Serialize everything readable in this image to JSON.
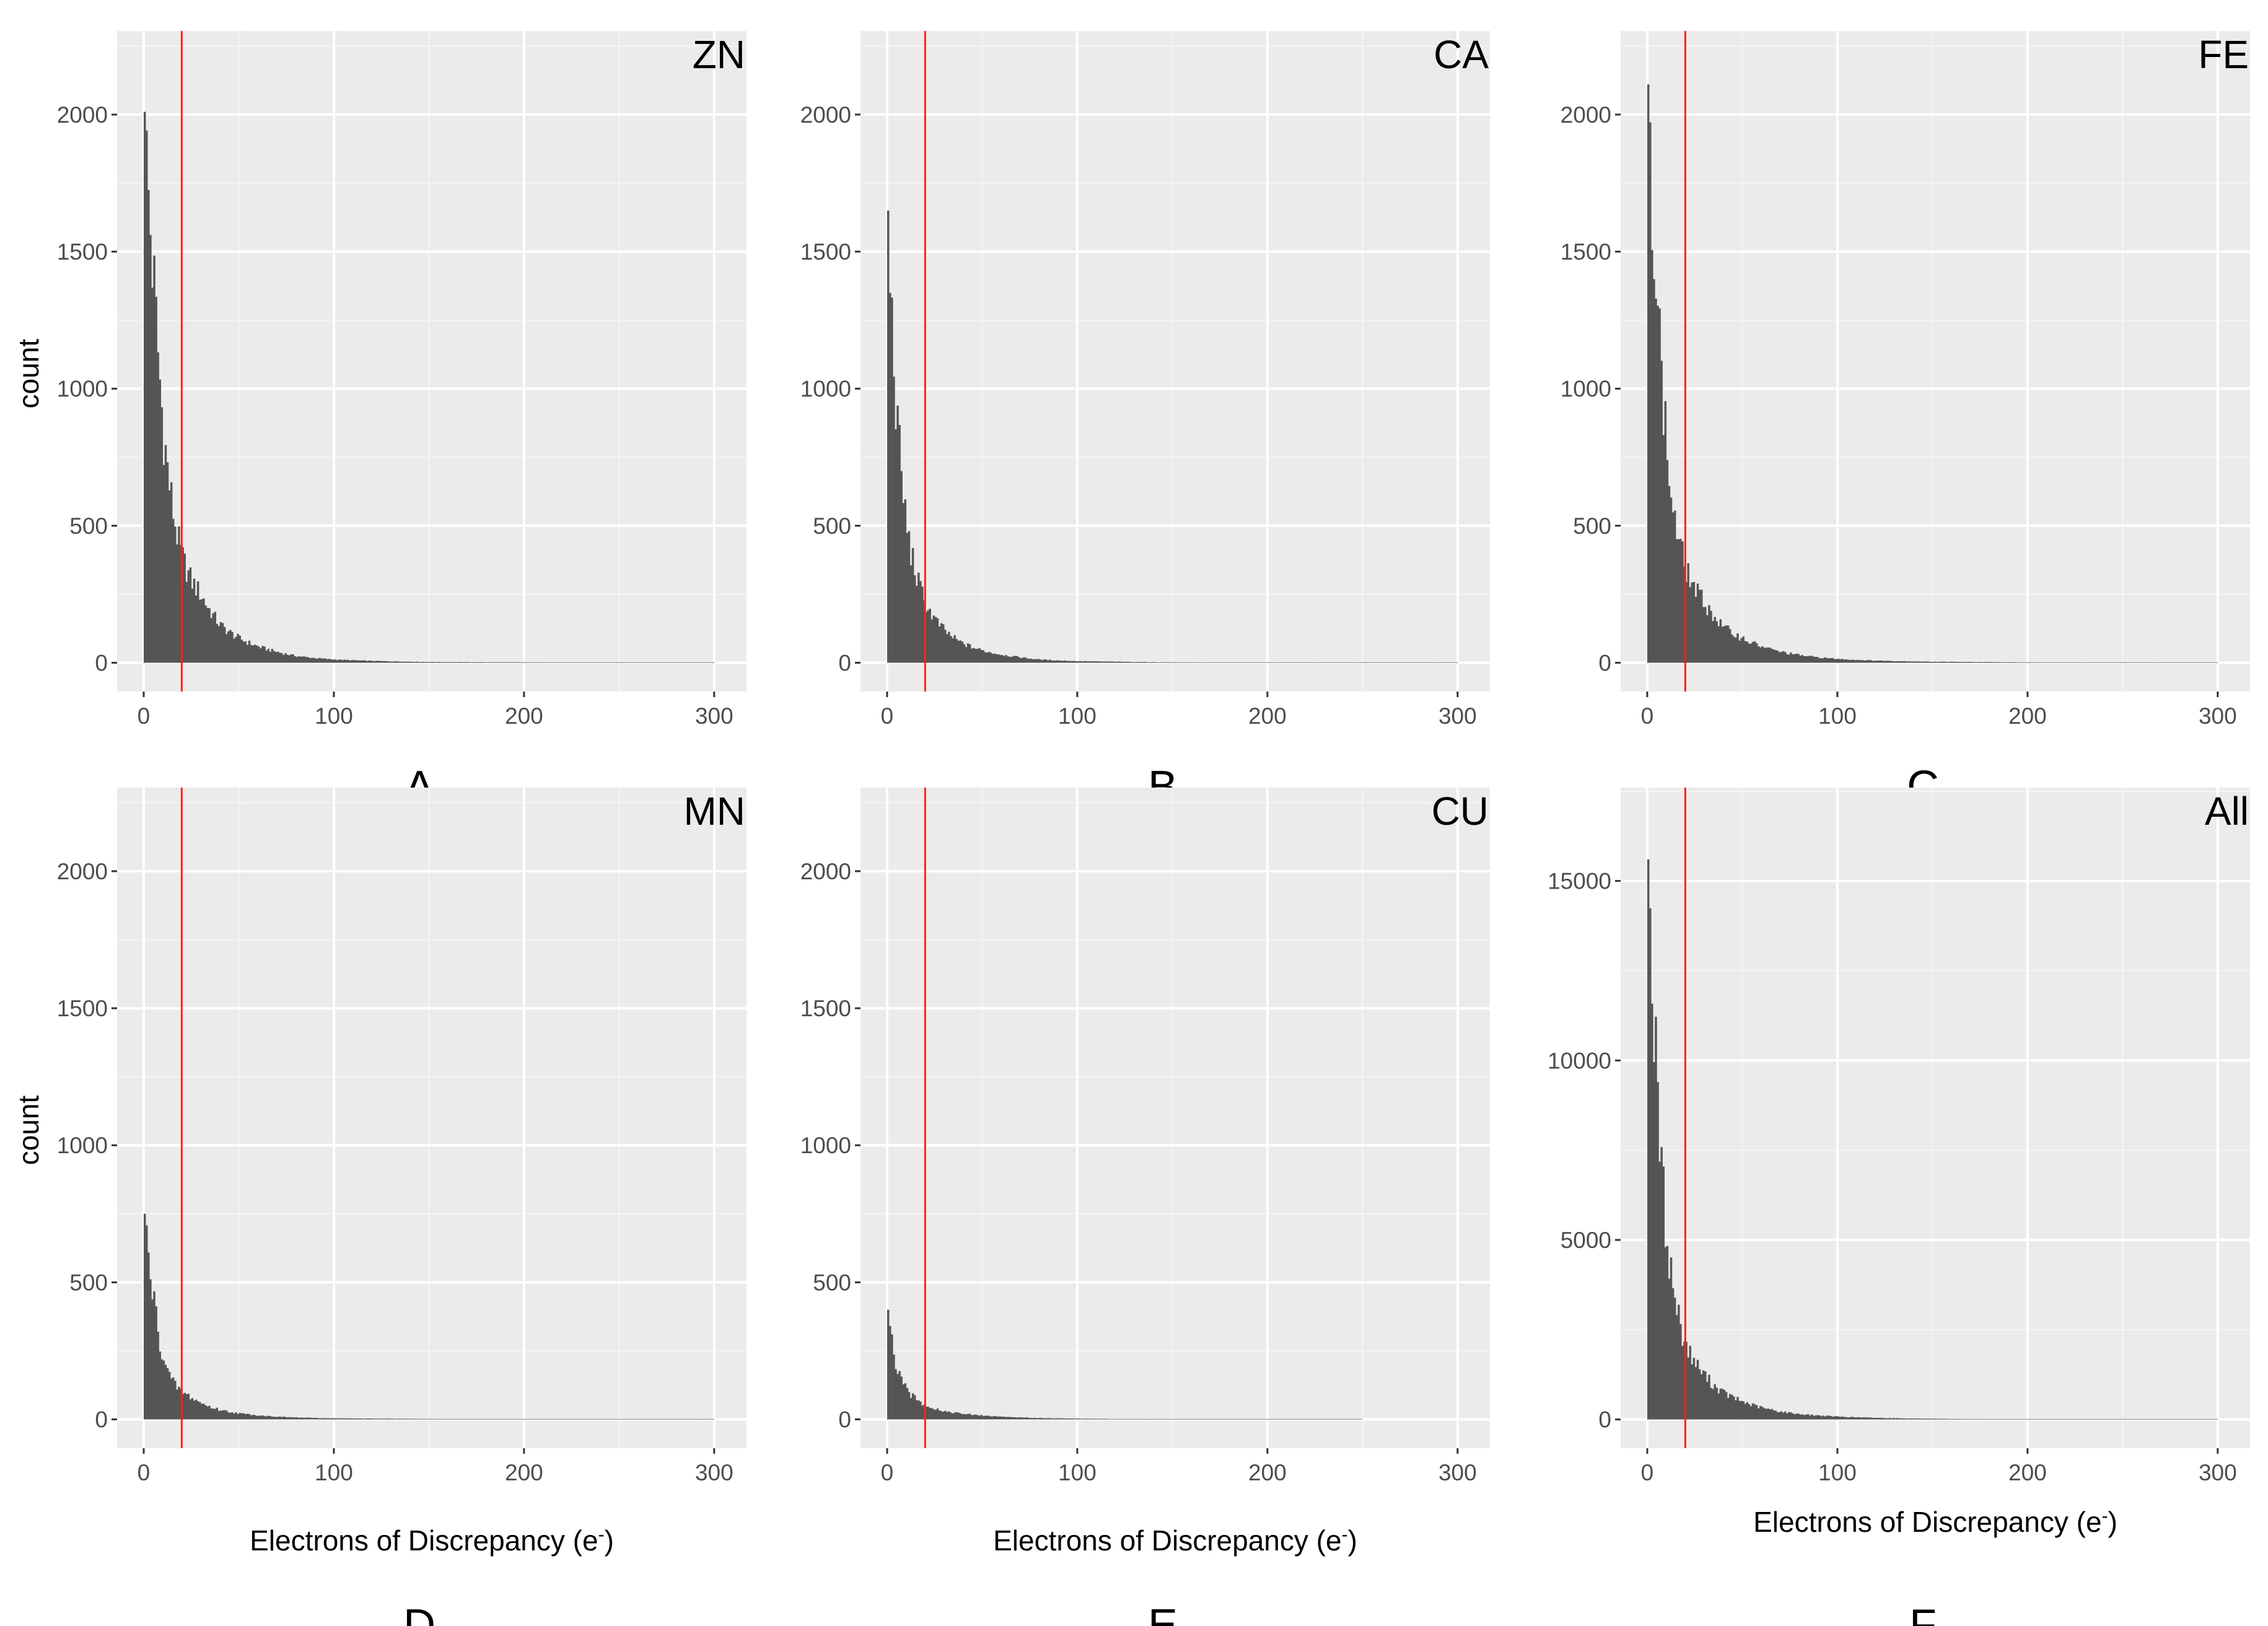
{
  "colors": {
    "panel_bg": "#ebebeb",
    "grid_major": "#ffffff",
    "grid_minor": "#f5f5f5",
    "bar": "#555555",
    "threshold_line": "#ff2020",
    "tick_text": "#4d4d4d"
  },
  "chart_data": [
    {
      "type": "bar",
      "subtype": "histogram",
      "title": "ZN",
      "panel_label": "A",
      "xlabel": "",
      "ylabel": "count",
      "xlim": [
        -14,
        317
      ],
      "ylim": [
        -105,
        2305
      ],
      "xticks": [
        0,
        100,
        200,
        300
      ],
      "yticks": [
        0,
        500,
        1000,
        1500,
        2000
      ],
      "threshold_x": 20,
      "grid": true,
      "peak": 2010,
      "profile": [
        [
          0,
          2010
        ],
        [
          2,
          1750
        ],
        [
          4,
          1530
        ],
        [
          6,
          1300
        ],
        [
          8,
          1080
        ],
        [
          10,
          880
        ],
        [
          12,
          740
        ],
        [
          14,
          620
        ],
        [
          16,
          530
        ],
        [
          18,
          450
        ],
        [
          20,
          390
        ],
        [
          25,
          300
        ],
        [
          30,
          250
        ],
        [
          35,
          190
        ],
        [
          40,
          140
        ],
        [
          50,
          90
        ],
        [
          60,
          60
        ],
        [
          70,
          40
        ],
        [
          80,
          25
        ],
        [
          100,
          12
        ],
        [
          120,
          7
        ],
        [
          150,
          3
        ],
        [
          200,
          2
        ],
        [
          250,
          1
        ],
        [
          300,
          0
        ]
      ]
    },
    {
      "type": "bar",
      "subtype": "histogram",
      "title": "CA",
      "panel_label": "B",
      "xlabel": "",
      "ylabel": "",
      "xlim": [
        -14,
        317
      ],
      "ylim": [
        -105,
        2305
      ],
      "xticks": [
        0,
        100,
        200,
        300
      ],
      "yticks": [
        0,
        500,
        1000,
        1500,
        2000
      ],
      "threshold_x": 20,
      "grid": true,
      "peak": 1650,
      "profile": [
        [
          0,
          1650
        ],
        [
          2,
          1320
        ],
        [
          4,
          1050
        ],
        [
          6,
          800
        ],
        [
          8,
          650
        ],
        [
          10,
          520
        ],
        [
          12,
          420
        ],
        [
          14,
          360
        ],
        [
          16,
          300
        ],
        [
          18,
          260
        ],
        [
          20,
          220
        ],
        [
          25,
          160
        ],
        [
          30,
          120
        ],
        [
          35,
          90
        ],
        [
          40,
          70
        ],
        [
          50,
          45
        ],
        [
          60,
          30
        ],
        [
          70,
          20
        ],
        [
          80,
          12
        ],
        [
          100,
          6
        ],
        [
          120,
          4
        ],
        [
          150,
          2
        ],
        [
          200,
          1
        ],
        [
          250,
          1
        ],
        [
          300,
          0
        ]
      ]
    },
    {
      "type": "bar",
      "subtype": "histogram",
      "title": "FE",
      "panel_label": "C",
      "xlabel": "",
      "ylabel": "",
      "xlim": [
        -14,
        317
      ],
      "ylim": [
        -105,
        2305
      ],
      "xticks": [
        0,
        100,
        200,
        300
      ],
      "yticks": [
        0,
        500,
        1000,
        1500,
        2000
      ],
      "threshold_x": 20,
      "grid": true,
      "peak": 2110,
      "profile": [
        [
          0,
          2110
        ],
        [
          2,
          1850
        ],
        [
          4,
          1550
        ],
        [
          6,
          1250
        ],
        [
          8,
          1000
        ],
        [
          10,
          800
        ],
        [
          12,
          650
        ],
        [
          14,
          540
        ],
        [
          16,
          460
        ],
        [
          18,
          400
        ],
        [
          20,
          350
        ],
        [
          25,
          270
        ],
        [
          30,
          220
        ],
        [
          35,
          170
        ],
        [
          40,
          130
        ],
        [
          50,
          90
        ],
        [
          60,
          60
        ],
        [
          70,
          40
        ],
        [
          80,
          28
        ],
        [
          100,
          14
        ],
        [
          120,
          8
        ],
        [
          150,
          4
        ],
        [
          200,
          2
        ],
        [
          250,
          1
        ],
        [
          300,
          0
        ]
      ]
    },
    {
      "type": "bar",
      "subtype": "histogram",
      "title": "MN",
      "panel_label": "D",
      "xlabel": "Electrons of Discrepancy (e",
      "xlabel_sup": "-",
      "xlabel_end": ")",
      "ylabel": "count",
      "xlim": [
        -14,
        317
      ],
      "ylim": [
        -105,
        2305
      ],
      "xticks": [
        0,
        100,
        200,
        300
      ],
      "yticks": [
        0,
        500,
        1000,
        1500,
        2000
      ],
      "threshold_x": 20,
      "grid": true,
      "peak": 750,
      "profile": [
        [
          0,
          750
        ],
        [
          2,
          620
        ],
        [
          4,
          500
        ],
        [
          6,
          400
        ],
        [
          8,
          300
        ],
        [
          10,
          240
        ],
        [
          12,
          190
        ],
        [
          14,
          150
        ],
        [
          16,
          130
        ],
        [
          18,
          115
        ],
        [
          20,
          100
        ],
        [
          25,
          80
        ],
        [
          30,
          60
        ],
        [
          35,
          45
        ],
        [
          40,
          35
        ],
        [
          50,
          22
        ],
        [
          60,
          15
        ],
        [
          70,
          10
        ],
        [
          80,
          7
        ],
        [
          100,
          4
        ],
        [
          120,
          3
        ],
        [
          150,
          2
        ],
        [
          200,
          1
        ],
        [
          250,
          1
        ],
        [
          300,
          0
        ]
      ]
    },
    {
      "type": "bar",
      "subtype": "histogram",
      "title": "CU",
      "panel_label": "E",
      "xlabel": "Electrons of Discrepancy (e",
      "xlabel_sup": "-",
      "xlabel_end": ")",
      "ylabel": "",
      "xlim": [
        -14,
        317
      ],
      "ylim": [
        -105,
        2305
      ],
      "xticks": [
        0,
        100,
        200,
        300
      ],
      "yticks": [
        0,
        500,
        1000,
        1500,
        2000
      ],
      "threshold_x": 20,
      "grid": true,
      "peak": 400,
      "profile": [
        [
          0,
          400
        ],
        [
          2,
          300
        ],
        [
          4,
          220
        ],
        [
          6,
          170
        ],
        [
          8,
          130
        ],
        [
          10,
          110
        ],
        [
          12,
          95
        ],
        [
          14,
          80
        ],
        [
          16,
          70
        ],
        [
          18,
          60
        ],
        [
          20,
          55
        ],
        [
          25,
          40
        ],
        [
          30,
          30
        ],
        [
          35,
          25
        ],
        [
          40,
          20
        ],
        [
          50,
          14
        ],
        [
          60,
          10
        ],
        [
          70,
          7
        ],
        [
          80,
          5
        ],
        [
          100,
          3
        ],
        [
          120,
          2
        ],
        [
          150,
          1
        ],
        [
          200,
          1
        ],
        [
          250,
          0
        ],
        [
          300,
          0
        ]
      ]
    },
    {
      "type": "bar",
      "subtype": "histogram",
      "title": "All",
      "panel_label": "F",
      "xlabel": "Electrons of Discrepancy (e",
      "xlabel_sup": "-",
      "xlabel_end": ")",
      "ylabel": "",
      "xlim": [
        -14,
        317
      ],
      "ylim": [
        -800,
        17600
      ],
      "xticks": [
        0,
        100,
        200,
        300
      ],
      "yticks": [
        0,
        5000,
        10000,
        15000
      ],
      "threshold_x": 20,
      "grid": true,
      "peak": 15600,
      "profile": [
        [
          0,
          15600
        ],
        [
          2,
          13000
        ],
        [
          4,
          10500
        ],
        [
          6,
          8300
        ],
        [
          8,
          6600
        ],
        [
          10,
          5200
        ],
        [
          12,
          4300
        ],
        [
          14,
          3600
        ],
        [
          16,
          3000
        ],
        [
          18,
          2500
        ],
        [
          20,
          2100
        ],
        [
          25,
          1600
        ],
        [
          30,
          1250
        ],
        [
          35,
          950
        ],
        [
          40,
          750
        ],
        [
          50,
          500
        ],
        [
          60,
          330
        ],
        [
          70,
          220
        ],
        [
          80,
          150
        ],
        [
          100,
          80
        ],
        [
          120,
          45
        ],
        [
          150,
          20
        ],
        [
          200,
          8
        ],
        [
          250,
          3
        ],
        [
          300,
          0
        ]
      ]
    }
  ]
}
